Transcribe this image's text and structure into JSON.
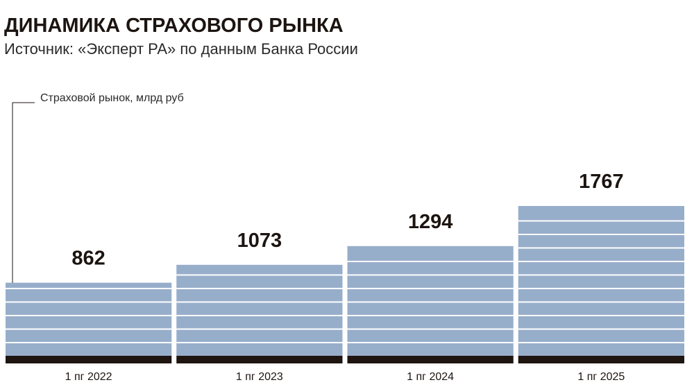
{
  "chart_data": {
    "type": "bar",
    "title": "ДИНАМИКА СТРАХОВОГО РЫНКА",
    "subtitle": "Источник: «Эксперт РА» по данным Банка России",
    "annotation": "Страховой рынок, млрд руб",
    "categories": [
      "1 пг 2022",
      "1 пг 2023",
      "1 пг 2024",
      "1 пг 2025"
    ],
    "values": [
      862,
      1073,
      1294,
      1767
    ],
    "color": "#97aecb"
  }
}
